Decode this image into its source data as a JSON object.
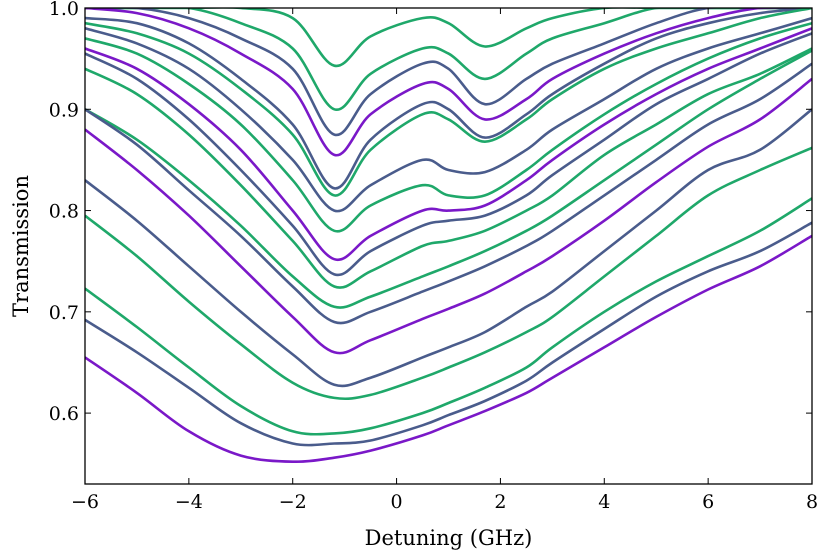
{
  "chart_data": {
    "type": "line",
    "xlabel": "Detuning (GHz)",
    "ylabel": "Transmission",
    "xlim": [
      -6,
      8
    ],
    "ylim": [
      0.53,
      1.0
    ],
    "xticks": [
      -6,
      -4,
      -2,
      0,
      2,
      4,
      6,
      8
    ],
    "xtick_labels": [
      "−6",
      "−4",
      "−2",
      "0",
      "2",
      "4",
      "6",
      "8"
    ],
    "yticks": [
      0.6,
      0.7,
      0.8,
      0.9,
      1.0
    ],
    "ytick_labels": [
      "0.6",
      "0.7",
      "0.8",
      "0.9",
      "1.0"
    ],
    "grid": false,
    "legend": "none",
    "colors": {
      "green": "#1fa86a",
      "slate": "#4a5c8c",
      "purple": "#7a18c8"
    },
    "x": [
      -6,
      -5,
      -4,
      -3,
      -2,
      -1.2,
      -0.5,
      0.5,
      1,
      1.7,
      2.5,
      3,
      4,
      5,
      6,
      7,
      8
    ],
    "series": [
      {
        "color": "green",
        "values": [
          1.0,
          1.0,
          1.0,
          1.0,
          0.99,
          0.943,
          0.972,
          0.99,
          0.985,
          0.962,
          0.98,
          0.99,
          1.0,
          1.0,
          1.0,
          1.0,
          1.0
        ]
      },
      {
        "color": "green",
        "values": [
          1.0,
          1.0,
          1.0,
          0.985,
          0.96,
          0.9,
          0.935,
          0.96,
          0.955,
          0.93,
          0.955,
          0.97,
          0.985,
          1.0,
          1.0,
          1.0,
          1.0
        ]
      },
      {
        "color": "slate",
        "values": [
          1.0,
          1.0,
          0.99,
          0.97,
          0.94,
          0.875,
          0.915,
          0.945,
          0.94,
          0.905,
          0.93,
          0.945,
          0.965,
          0.985,
          1.0,
          1.0,
          1.0
        ]
      },
      {
        "color": "purple",
        "values": [
          1.0,
          0.995,
          0.98,
          0.955,
          0.92,
          0.855,
          0.895,
          0.925,
          0.92,
          0.89,
          0.91,
          0.93,
          0.955,
          0.975,
          0.99,
          1.0,
          1.0
        ]
      },
      {
        "color": "slate",
        "values": [
          0.99,
          0.985,
          0.965,
          0.93,
          0.885,
          0.822,
          0.87,
          0.905,
          0.9,
          0.872,
          0.895,
          0.915,
          0.945,
          0.97,
          0.985,
          0.995,
          1.0
        ]
      },
      {
        "color": "green",
        "values": [
          0.985,
          0.975,
          0.955,
          0.92,
          0.875,
          0.815,
          0.86,
          0.895,
          0.89,
          0.868,
          0.89,
          0.91,
          0.94,
          0.96,
          0.975,
          0.99,
          1.0
        ]
      },
      {
        "color": "slate",
        "values": [
          0.98,
          0.965,
          0.94,
          0.9,
          0.85,
          0.8,
          0.825,
          0.85,
          0.84,
          0.838,
          0.86,
          0.88,
          0.91,
          0.94,
          0.96,
          0.975,
          0.99
        ]
      },
      {
        "color": "green",
        "values": [
          0.97,
          0.955,
          0.925,
          0.885,
          0.83,
          0.78,
          0.805,
          0.825,
          0.815,
          0.815,
          0.84,
          0.86,
          0.895,
          0.925,
          0.95,
          0.97,
          0.985
        ]
      },
      {
        "color": "purple",
        "values": [
          0.96,
          0.94,
          0.905,
          0.86,
          0.8,
          0.752,
          0.775,
          0.8,
          0.8,
          0.805,
          0.83,
          0.85,
          0.885,
          0.915,
          0.94,
          0.96,
          0.98
        ]
      },
      {
        "color": "slate",
        "values": [
          0.955,
          0.93,
          0.89,
          0.84,
          0.785,
          0.737,
          0.76,
          0.785,
          0.79,
          0.795,
          0.815,
          0.835,
          0.87,
          0.905,
          0.93,
          0.955,
          0.975
        ]
      },
      {
        "color": "green",
        "values": [
          0.94,
          0.915,
          0.875,
          0.825,
          0.77,
          0.725,
          0.74,
          0.765,
          0.77,
          0.78,
          0.8,
          0.815,
          0.855,
          0.885,
          0.915,
          0.935,
          0.96
        ]
      },
      {
        "color": "green",
        "values": [
          0.9,
          0.87,
          0.83,
          0.785,
          0.735,
          0.705,
          0.715,
          0.735,
          0.745,
          0.76,
          0.78,
          0.795,
          0.83,
          0.865,
          0.9,
          0.93,
          0.958
        ]
      },
      {
        "color": "slate",
        "values": [
          0.9,
          0.865,
          0.82,
          0.775,
          0.725,
          0.69,
          0.7,
          0.72,
          0.73,
          0.745,
          0.765,
          0.78,
          0.815,
          0.85,
          0.885,
          0.91,
          0.945
        ]
      },
      {
        "color": "purple",
        "values": [
          0.88,
          0.84,
          0.795,
          0.745,
          0.695,
          0.66,
          0.672,
          0.693,
          0.703,
          0.718,
          0.74,
          0.755,
          0.79,
          0.828,
          0.863,
          0.89,
          0.93
        ]
      },
      {
        "color": "slate",
        "values": [
          0.83,
          0.79,
          0.745,
          0.7,
          0.658,
          0.628,
          0.635,
          0.655,
          0.665,
          0.68,
          0.705,
          0.72,
          0.76,
          0.8,
          0.84,
          0.86,
          0.9
        ]
      },
      {
        "color": "green",
        "values": [
          0.795,
          0.755,
          0.71,
          0.668,
          0.63,
          0.615,
          0.618,
          0.635,
          0.645,
          0.66,
          0.68,
          0.695,
          0.735,
          0.775,
          0.815,
          0.84,
          0.862
        ]
      },
      {
        "color": "green",
        "values": [
          0.723,
          0.685,
          0.645,
          0.607,
          0.582,
          0.58,
          0.585,
          0.6,
          0.61,
          0.625,
          0.645,
          0.665,
          0.7,
          0.73,
          0.755,
          0.78,
          0.812
        ]
      },
      {
        "color": "slate",
        "values": [
          0.692,
          0.66,
          0.625,
          0.59,
          0.57,
          0.57,
          0.573,
          0.588,
          0.598,
          0.612,
          0.632,
          0.65,
          0.683,
          0.715,
          0.74,
          0.76,
          0.788
        ]
      },
      {
        "color": "purple",
        "values": [
          0.655,
          0.62,
          0.582,
          0.558,
          0.552,
          0.556,
          0.563,
          0.578,
          0.588,
          0.602,
          0.62,
          0.635,
          0.665,
          0.695,
          0.722,
          0.745,
          0.775
        ]
      }
    ]
  }
}
